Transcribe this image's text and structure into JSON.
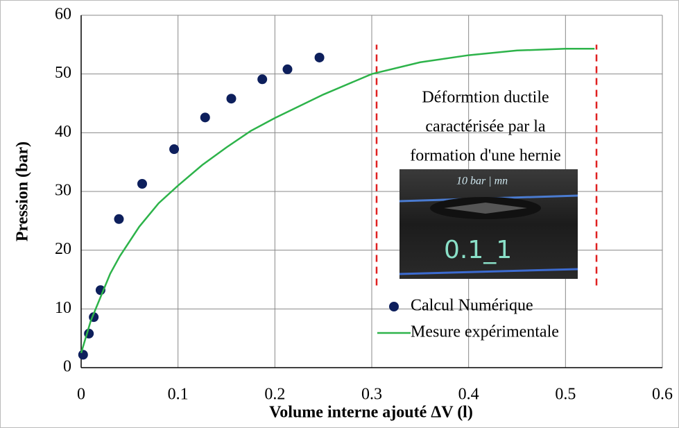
{
  "chart_data": {
    "type": "scatter",
    "x_label": "Volume interne  ajouté ΔV (l)",
    "y_label": "Pression (bar)",
    "xlim": [
      0,
      0.6
    ],
    "xticks": [
      0,
      0.1,
      0.2,
      0.3,
      0.4,
      0.5,
      0.6
    ],
    "ylim": [
      0,
      60
    ],
    "yticks": [
      0,
      10,
      20,
      30,
      40,
      50,
      60
    ],
    "grid": true,
    "legend": "lower right",
    "series": [
      {
        "name": "Calcul Numérique",
        "type": "scatter",
        "color": "#0d1f5c",
        "x": [
          0.002,
          0.008,
          0.013,
          0.02,
          0.039,
          0.063,
          0.096,
          0.128,
          0.155,
          0.187,
          0.213,
          0.246
        ],
        "values": [
          2.2,
          5.8,
          8.6,
          13.2,
          25.3,
          31.3,
          37.2,
          42.6,
          45.8,
          49.1,
          50.8,
          52.8
        ]
      },
      {
        "name": "Mesure expérimentale",
        "type": "line",
        "color": "#2db34a",
        "x": [
          0,
          0.01,
          0.02,
          0.03,
          0.04,
          0.06,
          0.08,
          0.1,
          0.125,
          0.15,
          0.175,
          0.2,
          0.25,
          0.3,
          0.35,
          0.4,
          0.45,
          0.5,
          0.53
        ],
        "values": [
          2.5,
          8,
          12,
          16,
          19,
          24,
          28,
          31,
          34.5,
          37.5,
          40.3,
          42.5,
          46.5,
          50,
          52,
          53.2,
          54,
          54.3,
          54.3
        ]
      }
    ],
    "dashed_lines": {
      "color": "#e02020",
      "x": [
        0.305,
        0.532
      ],
      "y": [
        14,
        55
      ]
    },
    "annotation": [
      "Déformtion ductile",
      "caractérisée par la",
      "formation d'une hernie"
    ],
    "photo_labels": [
      "10 bar | mn",
      "0.1_1"
    ]
  }
}
